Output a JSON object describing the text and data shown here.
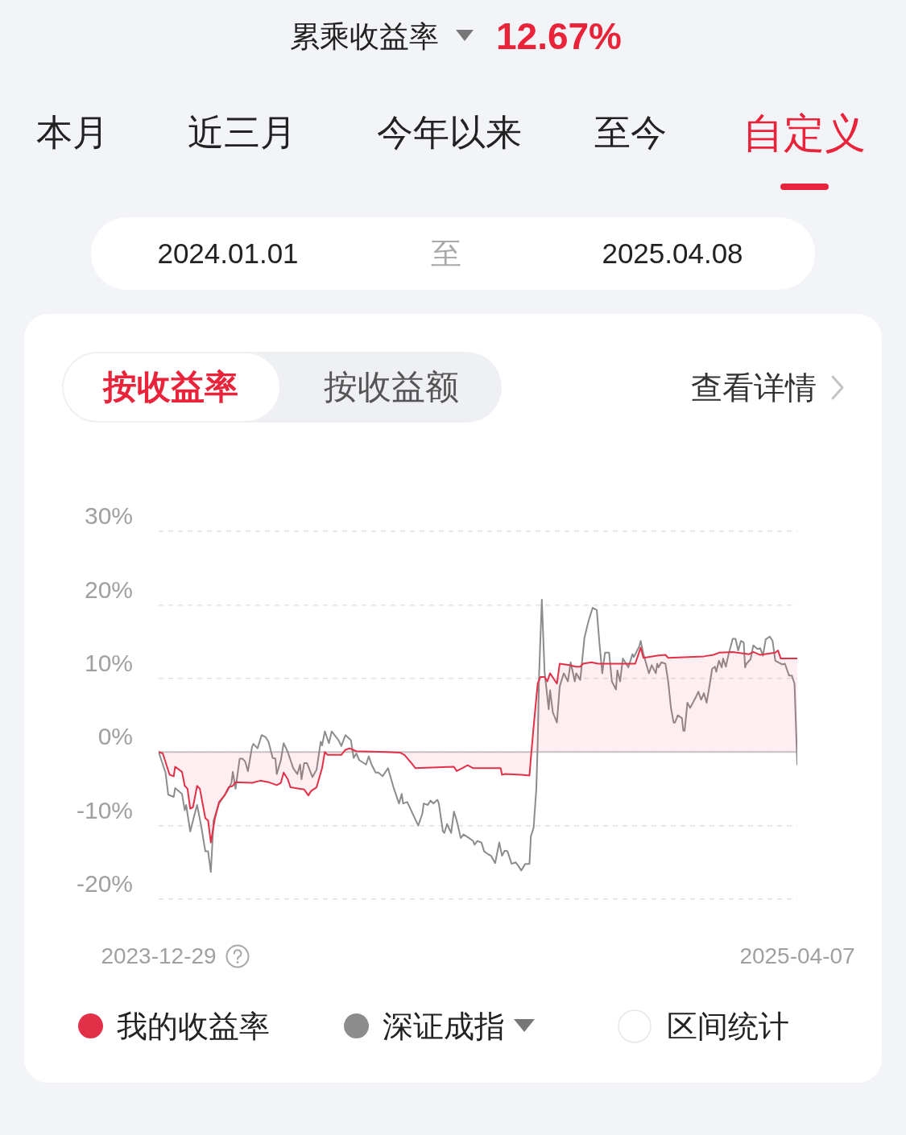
{
  "chart_data": {
    "type": "line",
    "title": "累乘收益率",
    "subtitle": "12.67%",
    "annotations": [
      "本月",
      "近三月",
      "今年以来",
      "至今",
      "自定义",
      "2024.01.01",
      "至",
      "2025.04.08",
      "按收益率",
      "按收益额",
      "查看详情",
      "区间统计"
    ],
    "xlim": [
      "2023-12-29",
      "2025-04-07"
    ],
    "xticks": [
      "2023-12-29",
      "2025-04-07"
    ],
    "ylim": [
      -20,
      30
    ],
    "yticks": [
      {
        "value": -20,
        "label": "-20%"
      },
      {
        "value": -10,
        "label": "-10%"
      },
      {
        "value": 0,
        "label": "0%"
      },
      {
        "value": 10,
        "label": "10%"
      },
      {
        "value": 20,
        "label": "20%"
      },
      {
        "value": 30,
        "label": "30%"
      }
    ],
    "grid": "y",
    "legend": "bottom",
    "marker": "none",
    "ref_lines": [
      {
        "axis": "y",
        "value": 0,
        "color": "#c8c8c8"
      }
    ],
    "series": [
      {
        "name": "我的收益率",
        "type": "area",
        "color": "#e23048",
        "x": [
          "2023-12-29",
          "2024-01-01",
          "2024-01-06",
          "2024-01-09",
          "2024-01-10",
          "2024-01-15",
          "2024-01-17",
          "2024-01-19",
          "2024-01-21",
          "2024-01-23",
          "2024-01-26",
          "2024-01-28",
          "2024-02-01",
          "2024-02-03",
          "2024-02-05",
          "2024-02-08",
          "2024-02-11",
          "2024-02-15",
          "2024-02-18",
          "2024-02-21",
          "2024-02-23",
          "2024-03-06",
          "2024-03-12",
          "2024-03-18",
          "2024-03-24",
          "2024-03-27",
          "2024-03-29",
          "2024-04-01",
          "2024-04-03",
          "2024-04-10",
          "2024-04-13",
          "2024-04-16",
          "2024-04-18",
          "2024-04-22",
          "2024-04-26",
          "2024-04-28",
          "2024-04-30",
          "2024-05-06",
          "2024-05-10",
          "2024-05-13",
          "2024-05-16",
          "2024-05-21",
          "2024-06-12",
          "2024-06-22",
          "2024-06-25",
          "2024-06-30",
          "2024-07-03",
          "2024-07-31",
          "2024-08-02",
          "2024-08-06",
          "2024-08-10",
          "2024-08-14",
          "2024-09-03",
          "2024-09-04",
          "2024-09-06",
          "2024-09-18",
          "2024-09-24",
          "2024-09-25",
          "2024-09-27",
          "2024-09-30",
          "2024-10-02",
          "2024-10-05",
          "2024-10-07",
          "2024-10-09",
          "2024-10-14",
          "2024-10-16",
          "2024-10-23",
          "2024-10-28",
          "2024-10-31",
          "2024-11-02",
          "2024-11-08",
          "2024-11-13",
          "2024-12-05",
          "2024-12-10",
          "2024-12-14",
          "2024-12-16",
          "2024-12-26",
          "2025-01-01",
          "2025-01-03",
          "2025-01-29",
          "2025-02-05",
          "2025-02-09",
          "2025-02-19",
          "2025-03-03",
          "2025-03-06",
          "2025-03-11",
          "2025-03-22",
          "2025-03-24",
          "2025-03-26",
          "2025-04-07"
        ],
        "values": [
          0.0,
          -0.2,
          -3.1,
          -3.3,
          -2.0,
          -2.7,
          -4.6,
          -5.0,
          -7.7,
          -7.5,
          -4.6,
          -5.0,
          -9.0,
          -9.3,
          -12.3,
          -9.0,
          -6.8,
          -5.9,
          -4.8,
          -4.6,
          -4.1,
          -4.2,
          -3.9,
          -4.1,
          -4.5,
          -4.2,
          -2.8,
          -3.7,
          -4.8,
          -5.0,
          -5.1,
          -5.9,
          -5.3,
          -4.8,
          -2.2,
          0.0,
          -0.4,
          -0.4,
          -0.4,
          0.3,
          0.5,
          0.1,
          0.0,
          -0.1,
          -0.4,
          -1.5,
          -2.2,
          -2.0,
          -2.6,
          -2.2,
          -1.8,
          -2.2,
          -2.2,
          -3.1,
          -3.0,
          -3.1,
          -3.2,
          -0.9,
          3.4,
          9.3,
          10.2,
          10.2,
          9.6,
          10.7,
          9.3,
          12.0,
          11.8,
          11.6,
          11.6,
          12.0,
          12.2,
          12.0,
          12.0,
          12.0,
          14.2,
          12.8,
          13.1,
          13.2,
          12.8,
          13.0,
          13.2,
          13.5,
          13.6,
          13.3,
          13.6,
          13.2,
          13.5,
          13.8,
          12.7,
          12.7
        ]
      },
      {
        "name": "深证成指",
        "type": "line",
        "color": "#8c8c8c",
        "x": [
          "2023-12-29",
          "2024-01-03",
          "2024-01-05",
          "2024-01-09",
          "2024-01-10",
          "2024-01-15",
          "2024-01-17",
          "2024-01-18",
          "2024-01-21",
          "2024-01-24",
          "2024-01-26",
          "2024-01-29",
          "2024-02-01",
          "2024-02-03",
          "2024-02-05",
          "2024-02-07",
          "2024-02-11",
          "2024-02-17",
          "2024-02-20",
          "2024-02-21",
          "2024-02-23",
          "2024-02-26",
          "2024-02-28",
          "2024-03-01",
          "2024-03-03",
          "2024-03-06",
          "2024-03-07",
          "2024-03-10",
          "2024-03-13",
          "2024-03-16",
          "2024-03-18",
          "2024-03-21",
          "2024-03-23",
          "2024-03-24",
          "2024-03-27",
          "2024-03-29",
          "2024-04-01",
          "2024-04-03",
          "2024-04-05",
          "2024-04-08",
          "2024-04-10",
          "2024-04-11",
          "2024-04-13",
          "2024-04-15",
          "2024-04-19",
          "2024-04-22",
          "2024-04-25",
          "2024-04-26",
          "2024-04-28",
          "2024-05-01",
          "2024-05-03",
          "2024-05-08",
          "2024-05-10",
          "2024-05-13",
          "2024-05-17",
          "2024-05-19",
          "2024-05-21",
          "2024-05-23",
          "2024-05-28",
          "2024-05-30",
          "2024-06-01",
          "2024-06-04",
          "2024-06-06",
          "2024-06-09",
          "2024-06-13",
          "2024-06-17",
          "2024-06-21",
          "2024-06-23",
          "2024-06-24",
          "2024-06-27",
          "2024-07-02",
          "2024-07-05",
          "2024-07-08",
          "2024-07-09",
          "2024-07-12",
          "2024-07-14",
          "2024-07-16",
          "2024-07-19",
          "2024-07-20",
          "2024-07-23",
          "2024-07-24",
          "2024-07-26",
          "2024-07-29",
          "2024-07-31",
          "2024-08-02",
          "2024-08-05",
          "2024-08-07",
          "2024-08-11",
          "2024-08-14",
          "2024-08-15",
          "2024-08-17",
          "2024-08-20",
          "2024-08-22",
          "2024-08-25",
          "2024-08-27",
          "2024-08-30",
          "2024-09-02",
          "2024-09-04",
          "2024-09-06",
          "2024-09-08",
          "2024-09-11",
          "2024-09-14",
          "2024-09-16",
          "2024-09-18",
          "2024-09-21",
          "2024-09-24",
          "2024-09-25",
          "2024-09-27",
          "2024-09-29",
          "2024-09-30",
          "2024-10-01",
          "2024-10-03",
          "2024-10-05",
          "2024-10-08",
          "2024-10-09",
          "2024-10-11",
          "2024-10-14",
          "2024-10-16",
          "2024-10-19",
          "2024-10-22",
          "2024-10-24",
          "2024-10-27",
          "2024-10-28",
          "2024-10-31",
          "2024-11-03",
          "2024-11-06",
          "2024-11-09",
          "2024-11-12",
          "2024-11-14",
          "2024-11-16",
          "2024-11-18",
          "2024-11-21",
          "2024-11-23",
          "2024-11-26",
          "2024-11-27",
          "2024-11-29",
          "2024-12-01",
          "2024-12-05",
          "2024-12-08",
          "2024-12-09",
          "2024-12-13",
          "2024-12-14",
          "2024-12-16",
          "2024-12-20",
          "2024-12-22",
          "2024-12-25",
          "2024-12-26",
          "2024-12-27",
          "2024-12-29",
          "2025-01-01",
          "2025-01-03",
          "2025-01-05",
          "2025-01-07",
          "2025-01-08",
          "2025-01-10",
          "2025-01-13",
          "2025-01-14",
          "2025-01-15",
          "2025-01-17",
          "2025-01-19",
          "2025-01-23",
          "2025-01-25",
          "2025-01-27",
          "2025-01-29",
          "2025-01-31",
          "2025-02-02",
          "2025-02-04",
          "2025-02-06",
          "2025-02-07",
          "2025-02-09",
          "2025-02-11",
          "2025-02-12",
          "2025-02-14",
          "2025-02-16",
          "2025-02-19",
          "2025-02-21",
          "2025-02-23",
          "2025-02-25",
          "2025-02-27",
          "2025-02-28",
          "2025-03-01",
          "2025-03-04",
          "2025-03-06",
          "2025-03-09",
          "2025-03-11",
          "2025-03-13",
          "2025-03-15",
          "2025-03-18",
          "2025-03-20",
          "2025-03-22",
          "2025-03-27",
          "2025-03-29",
          "2025-04-01",
          "2025-04-03",
          "2025-04-05",
          "2025-04-07"
        ],
        "values": [
          0.0,
          -2.8,
          -5.8,
          -6.1,
          -4.9,
          -5.7,
          -7.9,
          -7.2,
          -10.8,
          -8.6,
          -7.2,
          -10.1,
          -13.5,
          -13.5,
          -16.3,
          -9.3,
          -7.0,
          -5.3,
          -4.2,
          -2.7,
          -5.0,
          -0.9,
          -0.9,
          -1.3,
          -2.6,
          0.7,
          1.1,
          0.5,
          2.3,
          2.0,
          1.4,
          -0.8,
          -0.9,
          -3.0,
          -1.1,
          1.2,
          0.0,
          -1.1,
          -2.2,
          -3.0,
          -1.7,
          -3.7,
          -1.5,
          -1.5,
          -3.4,
          -2.4,
          1.4,
          0.9,
          2.8,
          1.2,
          2.8,
          1.6,
          0.8,
          2.3,
          1.6,
          -0.8,
          -0.2,
          -1.1,
          -1.7,
          -0.6,
          -1.7,
          -2.8,
          -2.8,
          -3.3,
          -2.2,
          -4.8,
          -7.0,
          -5.7,
          -7.0,
          -6.8,
          -8.8,
          -10.0,
          -8.4,
          -7.0,
          -7.2,
          -6.6,
          -7.0,
          -6.5,
          -7.0,
          -10.8,
          -11.0,
          -9.8,
          -11.0,
          -8.1,
          -9.3,
          -11.7,
          -11.2,
          -11.7,
          -12.1,
          -12.6,
          -12.1,
          -12.3,
          -13.5,
          -13.9,
          -14.1,
          -15.1,
          -12.3,
          -14.1,
          -13.4,
          -13.5,
          -15.2,
          -15.0,
          -15.5,
          -16.1,
          -15.2,
          -15.2,
          -11.5,
          -10.3,
          -5.0,
          1.2,
          10.4,
          20.7,
          10.9,
          5.8,
          8.4,
          5.4,
          4.0,
          8.9,
          10.7,
          9.6,
          12.2,
          9.6,
          10.7,
          9.8,
          15.5,
          17.8,
          19.6,
          19.3,
          14.7,
          10.7,
          13.5,
          13.5,
          9.6,
          8.5,
          11.1,
          9.6,
          12.7,
          11.5,
          13.3,
          12.9,
          14.4,
          15.1,
          13.3,
          10.7,
          11.8,
          10.7,
          12.0,
          11.5,
          12.2,
          12.0,
          9.6,
          6.0,
          4.0,
          4.0,
          5.0,
          4.6,
          2.9,
          2.9,
          6.7,
          6.0,
          7.4,
          8.2,
          7.1,
          8.0,
          6.7,
          8.9,
          11.3,
          11.6,
          10.9,
          12.4,
          11.5,
          12.7,
          11.6,
          13.3,
          15.4,
          15.4,
          13.8,
          15.1,
          14.9,
          11.5,
          12.0,
          12.6,
          14.5,
          14.0,
          14.1,
          13.1,
          15.3,
          15.7,
          15.1,
          12.4,
          11.9,
          12.0,
          10.4,
          10.4,
          9.3,
          -1.7
        ]
      }
    ]
  }
}
